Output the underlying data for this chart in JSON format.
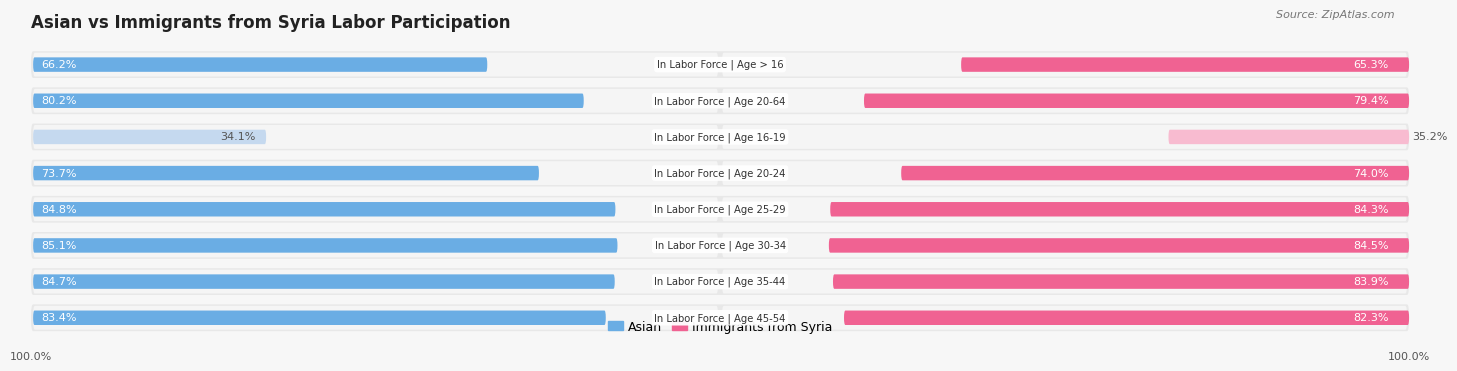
{
  "title": "Asian vs Immigrants from Syria Labor Participation",
  "source": "Source: ZipAtlas.com",
  "categories": [
    "In Labor Force | Age > 16",
    "In Labor Force | Age 20-64",
    "In Labor Force | Age 16-19",
    "In Labor Force | Age 20-24",
    "In Labor Force | Age 25-29",
    "In Labor Force | Age 30-34",
    "In Labor Force | Age 35-44",
    "In Labor Force | Age 45-54"
  ],
  "asian_values": [
    66.2,
    80.2,
    34.1,
    73.7,
    84.8,
    85.1,
    84.7,
    83.4
  ],
  "syria_values": [
    65.3,
    79.4,
    35.2,
    74.0,
    84.3,
    84.5,
    83.9,
    82.3
  ],
  "asian_color": "#6aade4",
  "asian_color_light": "#c5d9ef",
  "syria_color": "#f06292",
  "syria_color_light": "#f8bbd0",
  "row_bg_color": "#e8e8e8",
  "bar_bg_color": "#f5f5f5",
  "bg_color": "#f7f7f7",
  "max_value": 100.0,
  "title_fontsize": 12,
  "label_fontsize": 8,
  "tick_fontsize": 8,
  "legend_fontsize": 9
}
